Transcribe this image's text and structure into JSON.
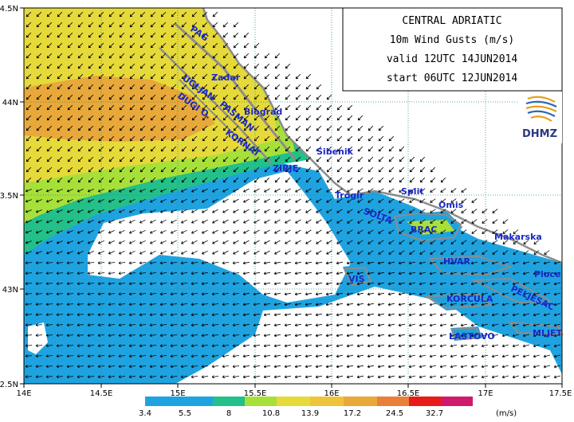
{
  "title_box": {
    "region": "CENTRAL ADRIATIC",
    "variable": "10m Wind Gusts (m/s)",
    "valid": "valid 12UTC 14JUN2014",
    "start": "start 06UTC 12JUN2014"
  },
  "logo": {
    "text": "DHMZ"
  },
  "axes": {
    "lon_ticks": [
      "14E",
      "14.5E",
      "15E",
      "15.5E",
      "16E",
      "16.5E",
      "17E",
      "17.5E"
    ],
    "lat_ticks": [
      "44.5N",
      "44N",
      "43.5N",
      "43N",
      "42.5N"
    ]
  },
  "places": [
    "PAG",
    "Zadar",
    "Biograd",
    "UGLJAN",
    "PASMAN",
    "DUGI O.",
    "KORNAT",
    "ZIRJE",
    "Sibenik",
    "Trogir",
    "Split",
    "SOLTA",
    "Omis",
    "BRAC",
    "Makarska",
    "HVAR",
    "VIS",
    "Ploce",
    "PELJESAC",
    "KORCULA",
    "LASTOVO",
    "MLJET"
  ],
  "legend": {
    "thresholds": [
      "3.4",
      "5.5",
      "8",
      "10.8",
      "13.9",
      "17.2",
      "24.5",
      "32.7"
    ],
    "unit": "(m/s)",
    "colors": [
      "#1fa3e0",
      "#23c08a",
      "#a8e03a",
      "#e6d93a",
      "#e8a83a",
      "#e8803a",
      "#e81a1a",
      "#d01a6e"
    ]
  },
  "colors": {
    "land": "#ffffff",
    "coast": "#8c8c8c",
    "place_text": "#1a28c8"
  }
}
